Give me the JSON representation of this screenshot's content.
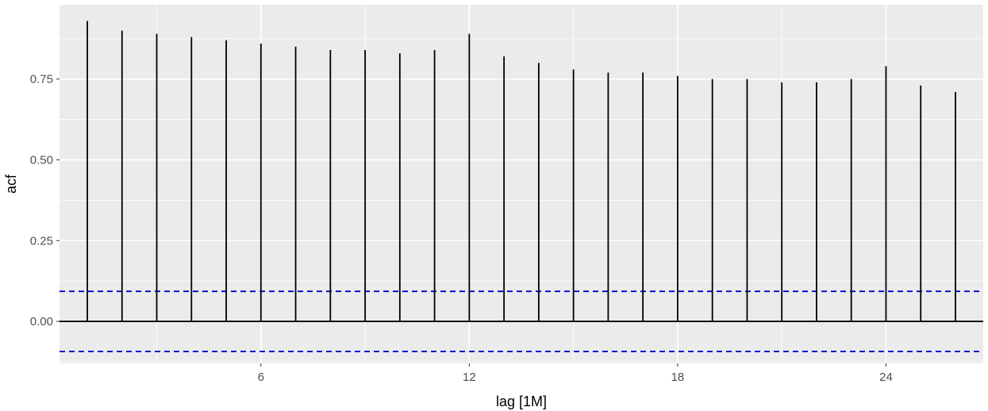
{
  "chart_data": {
    "type": "bar",
    "subtype": "acf-lollipop",
    "xlabel": "lag [1M]",
    "ylabel": "acf",
    "x": [
      1,
      2,
      3,
      4,
      5,
      6,
      7,
      8,
      9,
      10,
      11,
      12,
      13,
      14,
      15,
      16,
      17,
      18,
      19,
      20,
      21,
      22,
      23,
      24,
      25,
      26
    ],
    "values": [
      0.93,
      0.9,
      0.89,
      0.88,
      0.87,
      0.86,
      0.85,
      0.84,
      0.84,
      0.83,
      0.84,
      0.89,
      0.82,
      0.8,
      0.78,
      0.77,
      0.77,
      0.76,
      0.75,
      0.75,
      0.74,
      0.74,
      0.75,
      0.79,
      0.73,
      0.71
    ],
    "confidence_bound": 0.093,
    "xlim": [
      0.2,
      26.8
    ],
    "ylim": [
      -0.13,
      0.98
    ],
    "x_ticks": [
      6,
      12,
      18,
      24
    ],
    "x_minor_ticks": [
      3,
      9,
      15,
      21
    ],
    "y_ticks": [
      0.0,
      0.25,
      0.5,
      0.75
    ],
    "y_tick_labels": [
      "0.00",
      "0.25",
      "0.50",
      "0.75"
    ],
    "grid": true,
    "legend": "none",
    "colors": {
      "panel_background": "#ebebeb",
      "grid_line": "#ffffff",
      "bar": "#000000",
      "zero_line": "#000000",
      "confidence_line": "#0000cc",
      "tick_label": "#4d4d4d"
    }
  }
}
